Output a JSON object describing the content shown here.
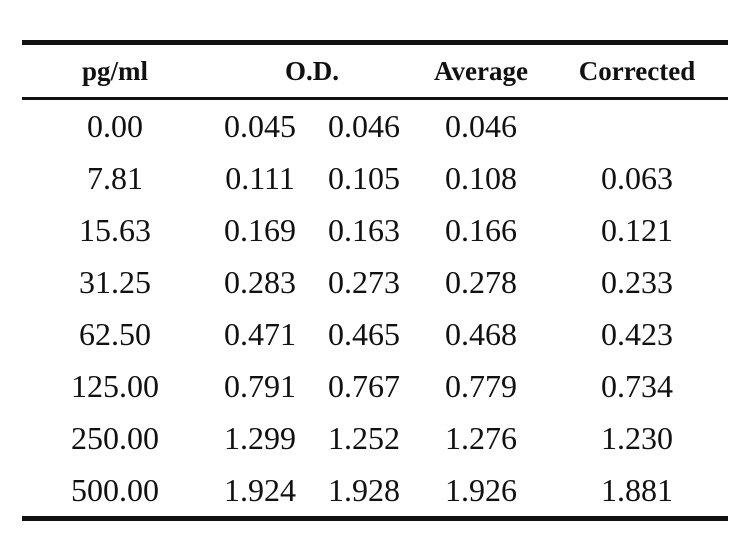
{
  "table": {
    "headers": {
      "concentration": "pg/ml",
      "od": "O.D.",
      "average": "Average",
      "corrected": "Corrected"
    },
    "rows": [
      {
        "conc": "0.00",
        "od1": "0.045",
        "od2": "0.046",
        "avg": "0.046",
        "cor": ""
      },
      {
        "conc": "7.81",
        "od1": "0.111",
        "od2": "0.105",
        "avg": "0.108",
        "cor": "0.063"
      },
      {
        "conc": "15.63",
        "od1": "0.169",
        "od2": "0.163",
        "avg": "0.166",
        "cor": "0.121"
      },
      {
        "conc": "31.25",
        "od1": "0.283",
        "od2": "0.273",
        "avg": "0.278",
        "cor": "0.233"
      },
      {
        "conc": "62.50",
        "od1": "0.471",
        "od2": "0.465",
        "avg": "0.468",
        "cor": "0.423"
      },
      {
        "conc": "125.00",
        "od1": "0.791",
        "od2": "0.767",
        "avg": "0.779",
        "cor": "0.734"
      },
      {
        "conc": "250.00",
        "od1": "1.299",
        "od2": "1.252",
        "avg": "1.276",
        "cor": "1.230"
      },
      {
        "conc": "500.00",
        "od1": "1.924",
        "od2": "1.928",
        "avg": "1.926",
        "cor": "1.881"
      }
    ]
  }
}
